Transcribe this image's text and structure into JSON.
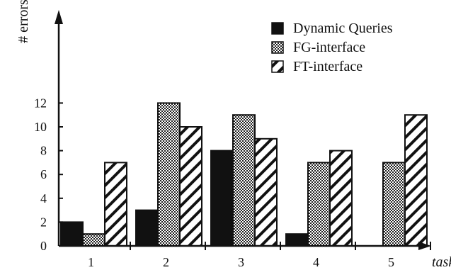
{
  "chart_data": {
    "type": "bar",
    "title": "",
    "xlabel": "task",
    "ylabel": "# errors",
    "categories": [
      "1",
      "2",
      "3",
      "4",
      "5"
    ],
    "ylim": [
      0,
      13
    ],
    "yticks": [
      0,
      2,
      4,
      6,
      8,
      10,
      12
    ],
    "grid": false,
    "legend_position": "top-right",
    "series": [
      {
        "name": "Dynamic Queries",
        "values": [
          2,
          3,
          8,
          1,
          0
        ],
        "fill": "solid",
        "color": "#111111"
      },
      {
        "name": "FG-interface",
        "values": [
          1,
          12,
          11,
          7,
          7
        ],
        "fill": "crosshatch",
        "color": "#555555"
      },
      {
        "name": "FT-interface",
        "values": [
          7,
          10,
          9,
          8,
          11
        ],
        "fill": "diagonal-stripes",
        "color": "#111111"
      }
    ]
  }
}
